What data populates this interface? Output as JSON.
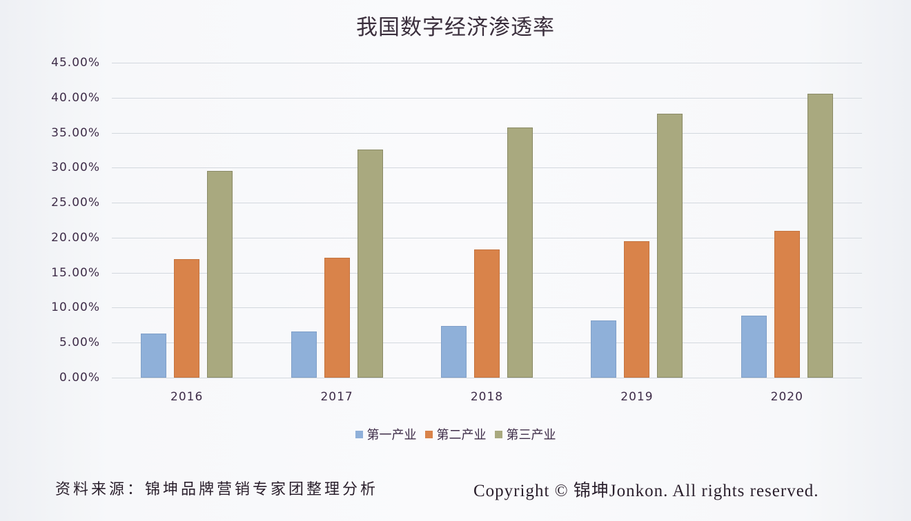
{
  "title": "我国数字经济渗透率",
  "footer": {
    "source": "资料来源：锦坤品牌营销专家团整理分析",
    "copyright": "Copyright © 锦坤Jonkon. All rights reserved."
  },
  "colors": {
    "primary_industry": "#8fb0d9",
    "secondary_industry": "#d9834a",
    "tertiary_industry": "#a9a97f"
  },
  "chart_data": {
    "type": "bar",
    "title": "我国数字经济渗透率",
    "xlabel": "",
    "ylabel": "",
    "categories": [
      "2016",
      "2017",
      "2018",
      "2019",
      "2020"
    ],
    "series": [
      {
        "name": "第一产业",
        "values": [
          6.3,
          6.6,
          7.4,
          8.2,
          8.9
        ]
      },
      {
        "name": "第二产业",
        "values": [
          16.9,
          17.1,
          18.3,
          19.5,
          21.0
        ]
      },
      {
        "name": "第三产业",
        "values": [
          29.5,
          32.6,
          35.7,
          37.7,
          40.6
        ]
      }
    ],
    "yticks": [
      "0.00%",
      "5.00%",
      "10.00%",
      "15.00%",
      "20.00%",
      "25.00%",
      "30.00%",
      "35.00%",
      "40.00%",
      "45.00%"
    ],
    "ylim": [
      0,
      45
    ],
    "unit": "%",
    "grid": true,
    "legend_position": "bottom"
  }
}
